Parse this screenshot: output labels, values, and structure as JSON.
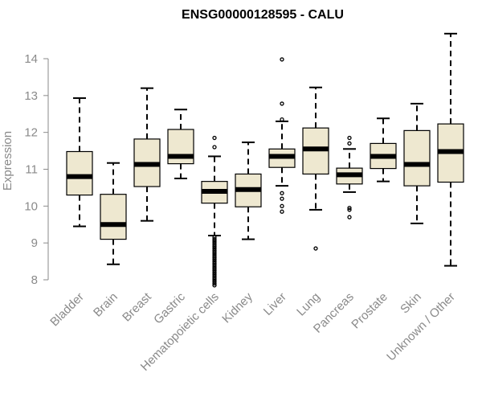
{
  "chart_data": {
    "type": "boxplot",
    "title": "ENSG00000128595 - CALU",
    "xlabel": "",
    "ylabel": "Expression",
    "ylim": [
      7.7,
      14.8
    ],
    "yticks": [
      8,
      9,
      10,
      11,
      12,
      13,
      14
    ],
    "box_color": "#eee8d0",
    "categories": [
      "Bladder",
      "Brain",
      "Breast",
      "Gastric",
      "Hematopoietic cells",
      "Kidney",
      "Liver",
      "Lung",
      "Pancreas",
      "Prostate",
      "Skin",
      "Unknown / Other"
    ],
    "boxes": [
      {
        "name": "Bladder",
        "whisker_low": 9.45,
        "q1": 10.3,
        "median": 10.8,
        "q3": 11.48,
        "whisker_high": 12.93,
        "outliers": []
      },
      {
        "name": "Brain",
        "whisker_low": 8.42,
        "q1": 9.1,
        "median": 9.5,
        "q3": 10.32,
        "whisker_high": 11.17,
        "outliers": []
      },
      {
        "name": "Breast",
        "whisker_low": 9.6,
        "q1": 10.53,
        "median": 11.13,
        "q3": 11.82,
        "whisker_high": 13.2,
        "outliers": []
      },
      {
        "name": "Gastric",
        "whisker_low": 10.75,
        "q1": 11.15,
        "median": 11.35,
        "q3": 12.08,
        "whisker_high": 12.62,
        "outliers": []
      },
      {
        "name": "Hematopoietic cells",
        "whisker_low": 9.2,
        "q1": 10.08,
        "median": 10.4,
        "q3": 10.67,
        "whisker_high": 11.35,
        "outliers": [
          11.85,
          11.6,
          9.15,
          9.1,
          9.05,
          9.0,
          8.95,
          8.9,
          8.85,
          8.8,
          8.75,
          8.7,
          8.65,
          8.6,
          8.55,
          8.5,
          8.45,
          8.4,
          8.35,
          8.3,
          8.25,
          8.2,
          8.15,
          8.1,
          8.05,
          8.0,
          7.95,
          7.9,
          7.85
        ]
      },
      {
        "name": "Kidney",
        "whisker_low": 9.1,
        "q1": 9.98,
        "median": 10.45,
        "q3": 10.87,
        "whisker_high": 11.73,
        "outliers": []
      },
      {
        "name": "Liver",
        "whisker_low": 10.55,
        "q1": 11.05,
        "median": 11.35,
        "q3": 11.55,
        "whisker_high": 12.3,
        "outliers": [
          13.98,
          12.78,
          12.35,
          10.35,
          10.2,
          10.0,
          9.85
        ]
      },
      {
        "name": "Lung",
        "whisker_low": 9.9,
        "q1": 10.87,
        "median": 11.55,
        "q3": 12.12,
        "whisker_high": 13.22,
        "outliers": [
          8.85
        ]
      },
      {
        "name": "Pancreas",
        "whisker_low": 10.38,
        "q1": 10.6,
        "median": 10.85,
        "q3": 11.03,
        "whisker_high": 11.55,
        "outliers": [
          11.85,
          11.7,
          9.95,
          9.9,
          9.7
        ]
      },
      {
        "name": "Prostate",
        "whisker_low": 10.67,
        "q1": 11.02,
        "median": 11.35,
        "q3": 11.7,
        "whisker_high": 12.38,
        "outliers": []
      },
      {
        "name": "Skin",
        "whisker_low": 9.53,
        "q1": 10.55,
        "median": 11.13,
        "q3": 12.05,
        "whisker_high": 12.78,
        "outliers": []
      },
      {
        "name": "Unknown / Other",
        "whisker_low": 8.38,
        "q1": 10.65,
        "median": 11.48,
        "q3": 12.23,
        "whisker_high": 14.68,
        "outliers": []
      }
    ]
  }
}
